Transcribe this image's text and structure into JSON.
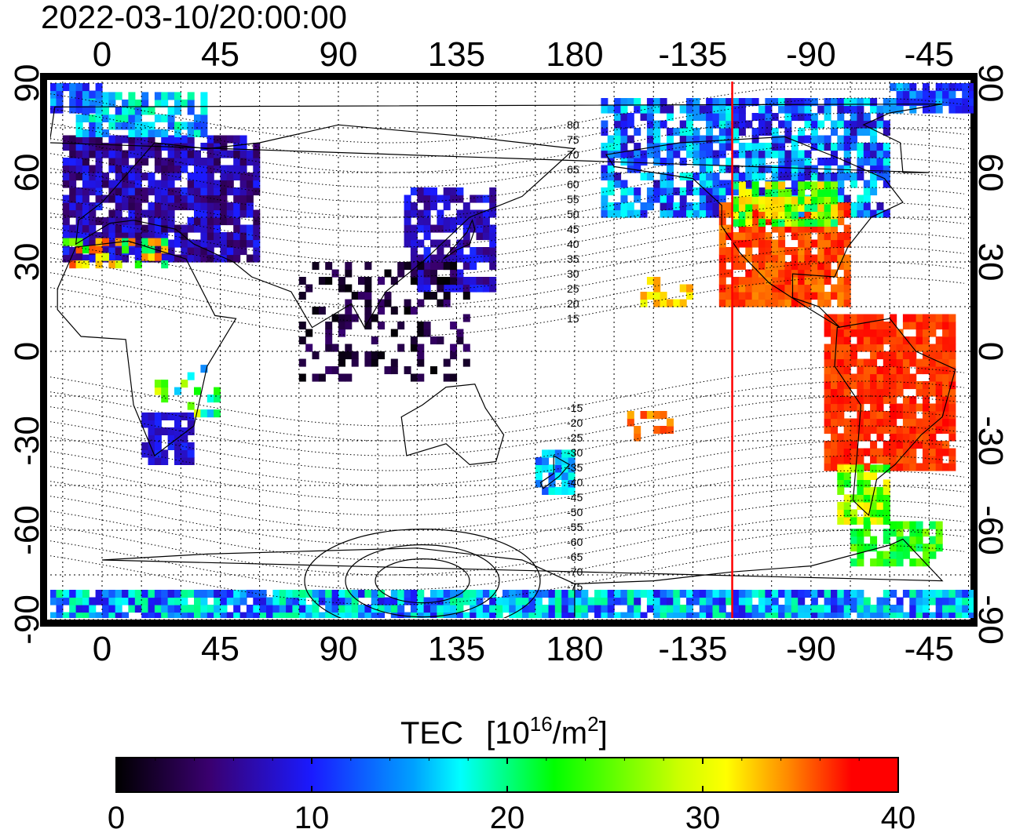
{
  "timestamp": "2022-03-10/20:00:00",
  "colorbar": {
    "title": "TEC",
    "unit_base": "[10",
    "unit_exp": "16",
    "unit_mid": "/m",
    "unit_exp2": "2",
    "unit_close": "]",
    "min": 0,
    "max": 40,
    "tick_labels": [
      "0",
      "10",
      "20",
      "30",
      "40"
    ],
    "colormap": [
      "#000000",
      "#3a0070",
      "#1a1aff",
      "#00ffff",
      "#00ff00",
      "#ffff00",
      "#ff8800",
      "#ff0000"
    ]
  },
  "map": {
    "lon_tick_labels": [
      "0",
      "45",
      "90",
      "135",
      "180",
      "-135",
      "-90",
      "-45"
    ],
    "lat_tick_labels": [
      "90",
      "60",
      "30",
      "0",
      "-30",
      "-60",
      "-90"
    ],
    "terminator_color": "#ff0000",
    "grid": "dotted",
    "terminator_longitude": -120,
    "contour_labels_north": [
      "80",
      "75",
      "70",
      "65",
      "60",
      "55",
      "50",
      "45",
      "40",
      "35",
      "30",
      "25",
      "20",
      "15"
    ],
    "contour_labels_south": [
      "-15",
      "-20",
      "-25",
      "-30",
      "-35",
      "-40",
      "-45",
      "-50",
      "-55",
      "-60",
      "-65",
      "-70",
      "-75"
    ]
  }
}
